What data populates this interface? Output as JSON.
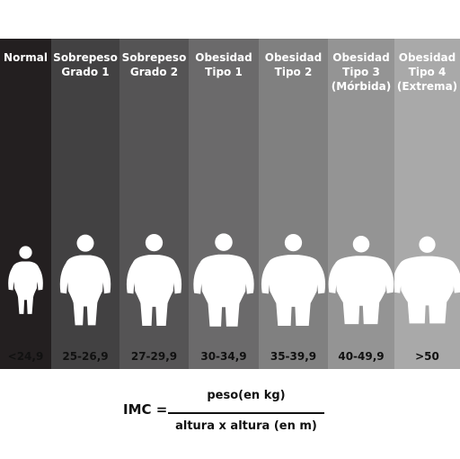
{
  "columns": [
    {
      "title": [
        "Normal"
      ],
      "range": "<24,9",
      "bg": "#231f20"
    },
    {
      "title": [
        "Sobrepeso",
        "Grado 1"
      ],
      "range": "25-26,9",
      "bg": "#424142"
    },
    {
      "title": [
        "Sobrepeso",
        "Grado 2"
      ],
      "range": "27-29,9",
      "bg": "#555455"
    },
    {
      "title": [
        "Obesidad",
        "Tipo 1"
      ],
      "range": "30-34,9",
      "bg": "#6b6a6b"
    },
    {
      "title": [
        "Obesidad",
        "Tipo 2"
      ],
      "range": "35-39,9",
      "bg": "#808080"
    },
    {
      "title": [
        "Obesidad",
        "Tipo 3",
        "(Mórbida)"
      ],
      "range": "40-49,9",
      "bg": "#949494"
    },
    {
      "title": [
        "Obesidad",
        "Tipo 4",
        "(Extrema)"
      ],
      "range": ">50",
      "bg": "#a9a9a9"
    }
  ],
  "formula": {
    "label": "IMC =",
    "numerator": "peso(en kg)",
    "denominator": "altura x altura (en m)"
  },
  "colors": {
    "figure": "#ffffff",
    "text": "#111111"
  }
}
